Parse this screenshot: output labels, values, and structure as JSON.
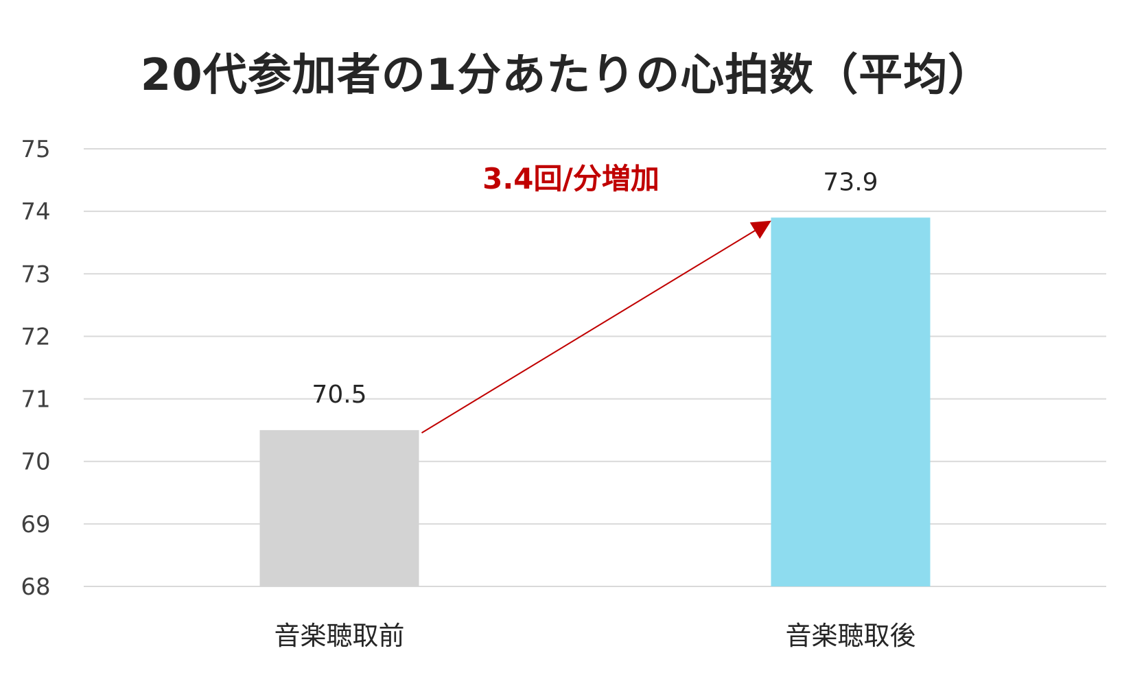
{
  "chart_data": {
    "type": "bar",
    "title": "20代参加者の1分あたりの心拍数（平均）",
    "xlabel": "",
    "ylabel": "",
    "categories": [
      "音楽聴取前",
      "音楽聴取後"
    ],
    "values": [
      70.5,
      73.9
    ],
    "data_labels": [
      "70.5",
      "73.9"
    ],
    "bar_colors": [
      "#D3D3D3",
      "#8EDCEF"
    ],
    "ylim": [
      68,
      75
    ],
    "yticks": [
      68,
      69,
      70,
      71,
      72,
      73,
      74,
      75
    ],
    "ytick_labels": [
      "68",
      "69",
      "70",
      "71",
      "72",
      "73",
      "74",
      "75"
    ],
    "grid": true,
    "legend": "none",
    "annotation": {
      "text": "3.4回/分増加",
      "color": "#C00000",
      "arrow_from_category": "音楽聴取前",
      "arrow_to_category": "音楽聴取後"
    }
  }
}
